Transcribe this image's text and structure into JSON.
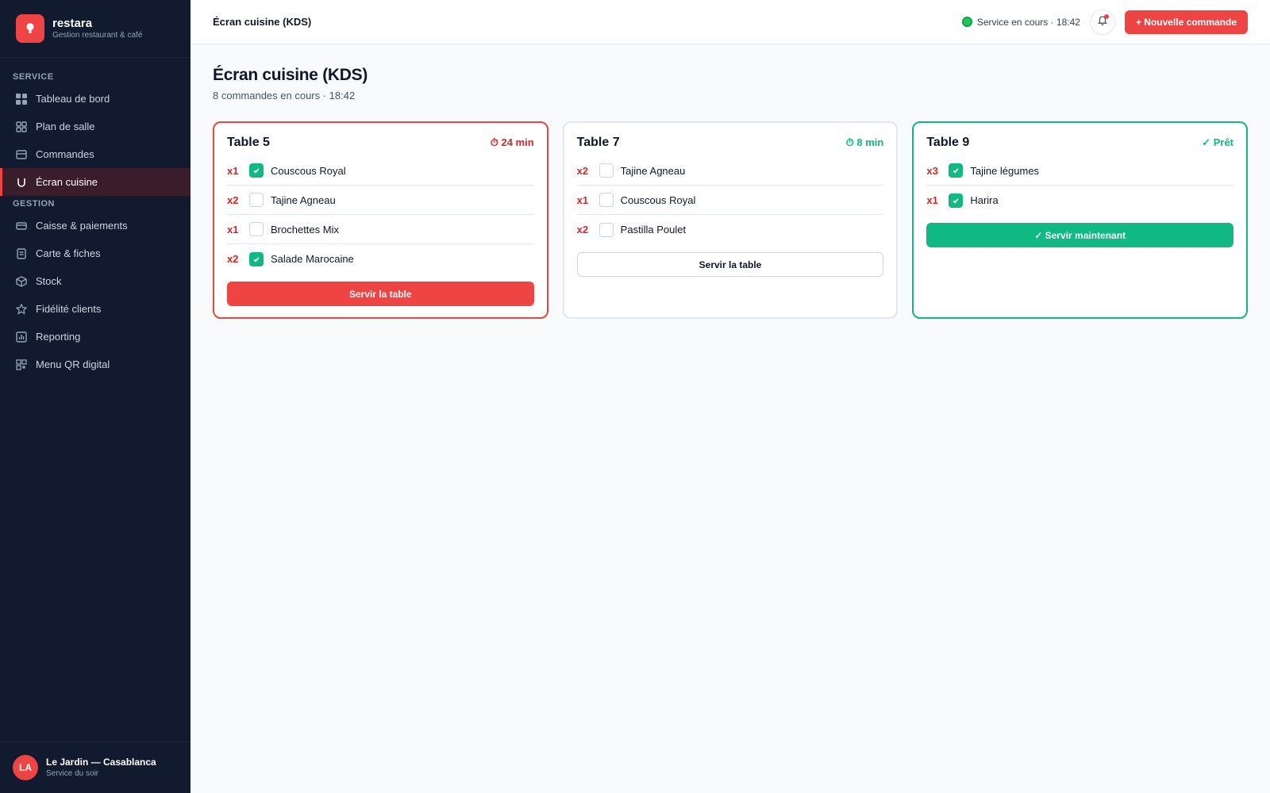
{
  "brand": {
    "name": "restara",
    "tagline": "Gestion restaurant & café"
  },
  "sidebar": {
    "sections": [
      {
        "label": "SERVICE"
      },
      {
        "label": "GESTION"
      }
    ],
    "items": [
      {
        "label": "Tableau de bord",
        "icon": "grid-icon"
      },
      {
        "label": "Plan de salle",
        "icon": "layout-icon"
      },
      {
        "label": "Commandes",
        "icon": "inbox-icon"
      },
      {
        "label": "Écran cuisine",
        "icon": "cooking-pot-icon",
        "active": true
      },
      {
        "label": "Caisse & paiements",
        "icon": "credit-card-icon"
      },
      {
        "label": "Carte & fiches",
        "icon": "file-list-icon"
      },
      {
        "label": "Stock",
        "icon": "box-icon"
      },
      {
        "label": "Fidélité clients",
        "icon": "star-icon"
      },
      {
        "label": "Reporting",
        "icon": "bar-chart-icon"
      },
      {
        "label": "Menu QR digital",
        "icon": "qr-code-icon"
      }
    ],
    "footer": {
      "initials": "LA",
      "name": "Le Jardin — Casablanca",
      "subtitle": "Service du soir"
    }
  },
  "topbar": {
    "title": "Écran cuisine (KDS)",
    "status": "Service en cours · 18:42",
    "new_order_label": "+ Nouvelle commande"
  },
  "page": {
    "title": "Écran cuisine (KDS)",
    "subtitle": "8 commandes en cours · 18:42"
  },
  "orders": [
    {
      "table": "Table 5",
      "timer": "⏱ 24 min",
      "items": [
        {
          "qty": "x1",
          "name": "Couscous Royal",
          "done": true
        },
        {
          "qty": "x2",
          "name": "Tajine Agneau",
          "done": false
        },
        {
          "qty": "x1",
          "name": "Brochettes Mix",
          "done": false
        },
        {
          "qty": "x2",
          "name": "Salade Marocaine",
          "done": true
        }
      ],
      "action": "Servir la table"
    },
    {
      "table": "Table 7",
      "timer": "⏱ 8 min",
      "items": [
        {
          "qty": "x2",
          "name": "Tajine Agneau",
          "done": false
        },
        {
          "qty": "x1",
          "name": "Couscous Royal",
          "done": false
        },
        {
          "qty": "x2",
          "name": "Pastilla Poulet",
          "done": false
        }
      ],
      "action": "Servir la table"
    },
    {
      "table": "Table 9",
      "timer": "✓ Prêt",
      "items": [
        {
          "qty": "x3",
          "name": "Tajine légumes",
          "done": true
        },
        {
          "qty": "x1",
          "name": "Harira",
          "done": true
        }
      ],
      "action": "✓ Servir maintenant"
    }
  ],
  "colors": {
    "accent": "#ef4444",
    "success": "#10b981",
    "sidebar_bg": "#111a2e"
  }
}
